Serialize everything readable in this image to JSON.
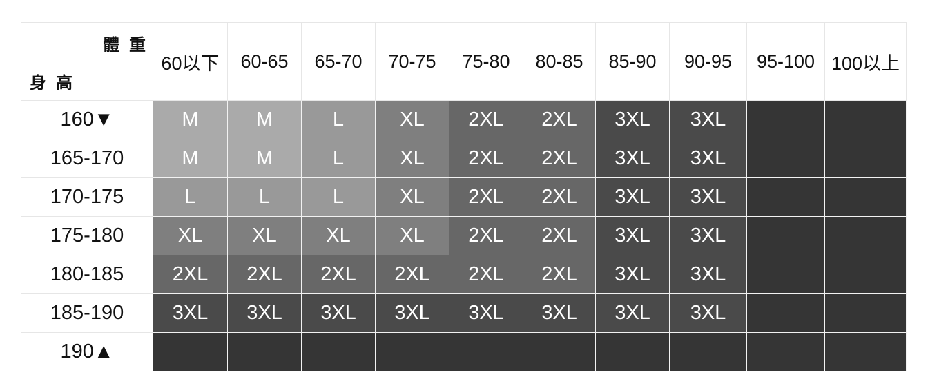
{
  "corner": {
    "weight_label": "體重",
    "height_label": "身高"
  },
  "weight_columns": [
    "60以下",
    "60-65",
    "65-70",
    "70-75",
    "75-80",
    "80-85",
    "85-90",
    "90-95",
    "95-100",
    "100以上"
  ],
  "size_colors": {
    "M": "#aaaaaa",
    "L": "#999999",
    "XL": "#7f7f7f",
    "2XL": "#676767",
    "3XL": "#4a4a4a",
    "": "#353535"
  },
  "rows": [
    {
      "height": "160▼",
      "sizes": [
        "M",
        "M",
        "L",
        "XL",
        "2XL",
        "2XL",
        "3XL",
        "3XL",
        "",
        ""
      ]
    },
    {
      "height": "165-170",
      "sizes": [
        "M",
        "M",
        "L",
        "XL",
        "2XL",
        "2XL",
        "3XL",
        "3XL",
        "",
        ""
      ]
    },
    {
      "height": "170-175",
      "sizes": [
        "L",
        "L",
        "L",
        "XL",
        "2XL",
        "2XL",
        "3XL",
        "3XL",
        "",
        ""
      ]
    },
    {
      "height": "175-180",
      "sizes": [
        "XL",
        "XL",
        "XL",
        "XL",
        "2XL",
        "2XL",
        "3XL",
        "3XL",
        "",
        ""
      ]
    },
    {
      "height": "180-185",
      "sizes": [
        "2XL",
        "2XL",
        "2XL",
        "2XL",
        "2XL",
        "2XL",
        "3XL",
        "3XL",
        "",
        ""
      ]
    },
    {
      "height": "185-190",
      "sizes": [
        "3XL",
        "3XL",
        "3XL",
        "3XL",
        "3XL",
        "3XL",
        "3XL",
        "3XL",
        "",
        ""
      ]
    },
    {
      "height": "190▲",
      "sizes": [
        "",
        "",
        "",
        "",
        "",
        "",
        "",
        "",
        "",
        ""
      ]
    }
  ]
}
